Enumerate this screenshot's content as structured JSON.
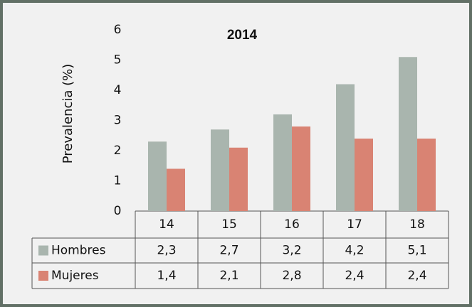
{
  "chart_data": {
    "type": "bar",
    "title": "2014",
    "y_label": "Prevalencia (%)",
    "categories": [
      "14",
      "15",
      "16",
      "17",
      "18"
    ],
    "series": [
      {
        "name": "Hombres",
        "color": "#a9b5ae",
        "values": [
          2.3,
          2.7,
          3.2,
          4.2,
          5.1
        ],
        "value_labels": [
          "2,3",
          "2,7",
          "3,2",
          "4,2",
          "5,1"
        ]
      },
      {
        "name": "Mujeres",
        "color": "#d98373",
        "values": [
          1.4,
          2.1,
          2.8,
          2.4,
          2.4
        ],
        "value_labels": [
          "1,4",
          "2,1",
          "2,8",
          "2,4",
          "2,4"
        ]
      }
    ],
    "ylim": [
      0,
      6
    ],
    "yticks": [
      0,
      1,
      2,
      3,
      4,
      5,
      6
    ],
    "grid": false
  }
}
